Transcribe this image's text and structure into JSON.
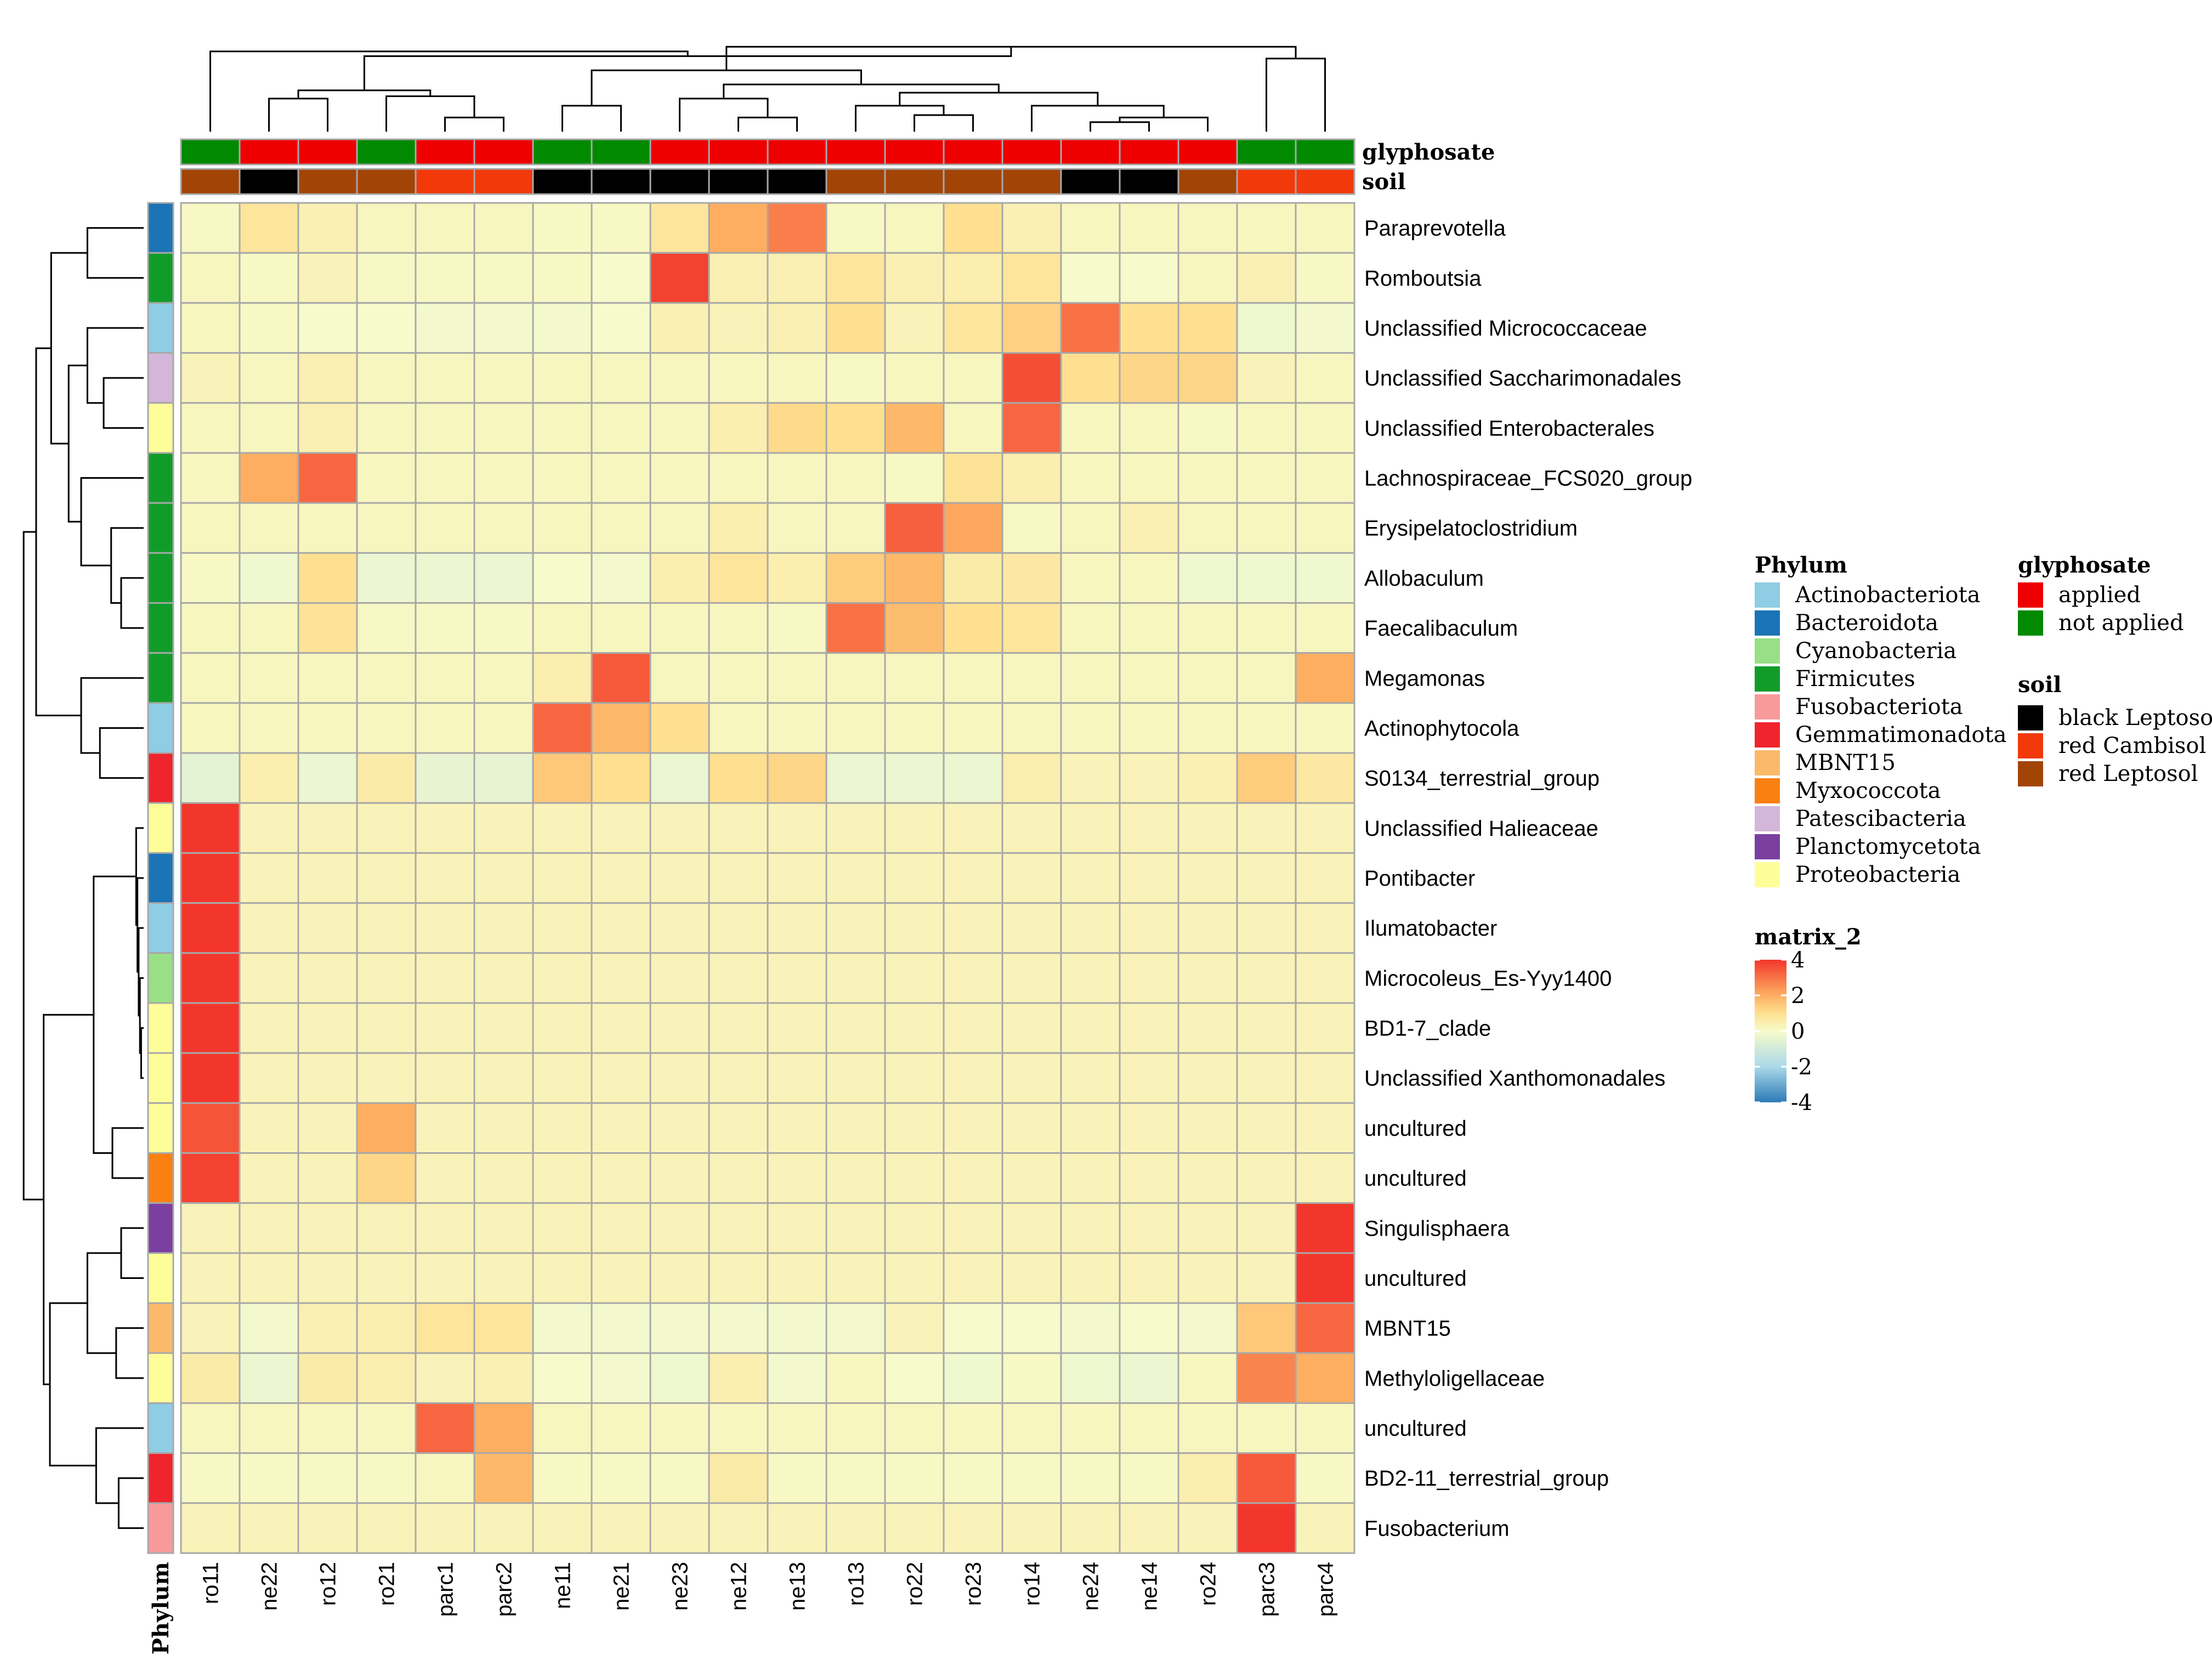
{
  "chart_data": {
    "type": "heatmap",
    "columns": [
      "ro11",
      "ne22",
      "ro12",
      "ro21",
      "parc1",
      "parc2",
      "ne11",
      "ne21",
      "ne23",
      "ne12",
      "ne13",
      "ro13",
      "ro22",
      "ro23",
      "ro14",
      "ne24",
      "ne14",
      "ro24",
      "parc3",
      "parc4"
    ],
    "rows": [
      {
        "label": "Paraprevotella",
        "phylum": "Bacteroidota",
        "values": [
          0.1,
          0.8,
          0.4,
          0.2,
          0.2,
          0.2,
          0.1,
          0.1,
          0.8,
          2.0,
          2.8,
          0.1,
          0.2,
          1.0,
          0.4,
          0.2,
          0.2,
          0.2,
          0.2,
          0.2
        ]
      },
      {
        "label": "Romboutsia",
        "phylum": "Firmicutes",
        "values": [
          0.2,
          0.1,
          0.3,
          0.1,
          0.1,
          0.1,
          0.1,
          0.0,
          3.8,
          0.4,
          0.4,
          0.8,
          0.4,
          0.5,
          0.8,
          0.0,
          0.0,
          0.2,
          0.4,
          0.1
        ]
      },
      {
        "label": "Unclassified  Micrococcaceae",
        "phylum": "Actinobacteriota",
        "values": [
          0.2,
          0.1,
          0.0,
          0.0,
          -0.1,
          -0.1,
          -0.1,
          0.0,
          0.4,
          0.3,
          0.4,
          1.0,
          0.3,
          0.8,
          1.3,
          3.0,
          1.0,
          1.0,
          -0.2,
          -0.1
        ]
      },
      {
        "label": "Unclassified  Saccharimonadales",
        "phylum": "Patescibacteria",
        "values": [
          0.3,
          0.2,
          0.4,
          0.2,
          0.2,
          0.2,
          0.2,
          0.2,
          0.2,
          0.2,
          0.2,
          0.1,
          0.2,
          0.2,
          3.6,
          1.0,
          1.2,
          1.2,
          0.3,
          0.2
        ]
      },
      {
        "label": "Unclassified  Enterobacterales",
        "phylum": "Proteobacteria",
        "values": [
          0.2,
          0.2,
          0.4,
          0.2,
          0.2,
          0.2,
          0.2,
          0.2,
          0.2,
          0.5,
          1.1,
          1.0,
          1.8,
          0.2,
          3.2,
          0.2,
          0.2,
          0.1,
          0.2,
          0.2
        ]
      },
      {
        "label": "Lachnospiraceae_FCS020_group",
        "phylum": "Firmicutes",
        "values": [
          0.2,
          2.0,
          3.2,
          0.2,
          0.2,
          0.2,
          0.2,
          0.2,
          0.2,
          0.2,
          0.2,
          0.2,
          0.1,
          0.9,
          0.5,
          0.2,
          0.2,
          0.2,
          0.2,
          0.2
        ]
      },
      {
        "label": "Erysipelatoclostridium",
        "phylum": "Firmicutes",
        "values": [
          0.2,
          0.2,
          0.2,
          0.2,
          0.2,
          0.2,
          0.2,
          0.2,
          0.2,
          0.5,
          0.2,
          0.2,
          3.3,
          2.1,
          0.1,
          0.2,
          0.4,
          0.2,
          0.2,
          0.2
        ]
      },
      {
        "label": "Allobaculum",
        "phylum": "Firmicutes",
        "values": [
          0.1,
          -0.2,
          1.0,
          -0.3,
          -0.3,
          -0.3,
          0.0,
          -0.1,
          0.5,
          0.8,
          0.5,
          1.4,
          1.8,
          0.6,
          0.7,
          0.2,
          0.2,
          -0.2,
          -0.2,
          -0.2
        ]
      },
      {
        "label": "Faecalibaculum",
        "phylum": "Firmicutes",
        "values": [
          0.2,
          0.2,
          0.9,
          0.1,
          0.1,
          0.1,
          0.2,
          0.2,
          0.2,
          0.2,
          0.1,
          3.0,
          1.7,
          1.0,
          0.8,
          0.2,
          0.2,
          0.2,
          0.2,
          0.2
        ]
      },
      {
        "label": "Megamonas",
        "phylum": "Firmicutes",
        "values": [
          0.2,
          0.2,
          0.2,
          0.2,
          0.2,
          0.2,
          0.5,
          3.4,
          0.2,
          0.2,
          0.2,
          0.2,
          0.2,
          0.2,
          0.2,
          0.2,
          0.2,
          0.2,
          0.2,
          2.0
        ]
      },
      {
        "label": "Actinophytocola",
        "phylum": "Actinobacteriota",
        "values": [
          0.2,
          0.2,
          0.2,
          0.2,
          0.2,
          0.2,
          3.2,
          1.8,
          1.0,
          0.2,
          0.2,
          0.2,
          0.2,
          0.2,
          0.2,
          0.2,
          0.2,
          0.2,
          0.2,
          0.2
        ]
      },
      {
        "label": "S0134_terrestrial_group",
        "phylum": "Gemmatimonadota",
        "values": [
          -0.5,
          0.5,
          -0.3,
          0.6,
          -0.4,
          -0.4,
          1.5,
          1.0,
          -0.3,
          1.0,
          1.2,
          -0.3,
          -0.3,
          -0.3,
          0.5,
          0.3,
          0.3,
          0.4,
          1.4,
          0.7
        ]
      },
      {
        "label": "Unclassified  Halieaceae",
        "phylum": "Proteobacteria",
        "values": [
          4.4,
          0.3,
          0.3,
          0.3,
          0.3,
          0.3,
          0.3,
          0.3,
          0.3,
          0.3,
          0.3,
          0.3,
          0.3,
          0.3,
          0.3,
          0.3,
          0.3,
          0.3,
          0.3,
          0.3
        ]
      },
      {
        "label": "Pontibacter",
        "phylum": "Bacteroidota",
        "values": [
          4.4,
          0.3,
          0.3,
          0.3,
          0.3,
          0.3,
          0.3,
          0.3,
          0.3,
          0.3,
          0.3,
          0.3,
          0.3,
          0.3,
          0.3,
          0.3,
          0.3,
          0.3,
          0.3,
          0.3
        ]
      },
      {
        "label": "Ilumatobacter",
        "phylum": "Actinobacteriota",
        "values": [
          4.4,
          0.3,
          0.3,
          0.3,
          0.3,
          0.3,
          0.3,
          0.3,
          0.3,
          0.3,
          0.3,
          0.3,
          0.3,
          0.3,
          0.3,
          0.3,
          0.3,
          0.3,
          0.3,
          0.3
        ]
      },
      {
        "label": "Microcoleus_Es-Yyy1400",
        "phylum": "Cyanobacteria",
        "values": [
          4.4,
          0.3,
          0.3,
          0.3,
          0.3,
          0.3,
          0.3,
          0.3,
          0.3,
          0.3,
          0.3,
          0.3,
          0.3,
          0.3,
          0.3,
          0.3,
          0.3,
          0.3,
          0.3,
          0.3
        ]
      },
      {
        "label": "BD1-7_clade",
        "phylum": "Proteobacteria",
        "values": [
          4.4,
          0.3,
          0.3,
          0.3,
          0.3,
          0.3,
          0.3,
          0.3,
          0.3,
          0.3,
          0.3,
          0.3,
          0.3,
          0.3,
          0.3,
          0.3,
          0.3,
          0.3,
          0.3,
          0.3
        ]
      },
      {
        "label": "Unclassified  Xanthomonadales",
        "phylum": "Proteobacteria",
        "values": [
          4.4,
          0.3,
          0.3,
          0.3,
          0.3,
          0.3,
          0.3,
          0.3,
          0.3,
          0.3,
          0.3,
          0.3,
          0.3,
          0.3,
          0.3,
          0.3,
          0.3,
          0.3,
          0.3,
          0.3
        ]
      },
      {
        "label": "uncultured",
        "phylum": "Proteobacteria",
        "values": [
          3.5,
          0.3,
          0.3,
          2.0,
          0.3,
          0.3,
          0.3,
          0.3,
          0.3,
          0.3,
          0.3,
          0.3,
          0.3,
          0.3,
          0.3,
          0.3,
          0.3,
          0.3,
          0.3,
          0.3
        ]
      },
      {
        "label": "uncultured",
        "phylum": "Myxococcota",
        "values": [
          3.8,
          0.3,
          0.3,
          1.2,
          0.3,
          0.3,
          0.3,
          0.3,
          0.3,
          0.3,
          0.3,
          0.3,
          0.3,
          0.3,
          0.3,
          0.3,
          0.3,
          0.3,
          0.3,
          0.3
        ]
      },
      {
        "label": "Singulisphaera",
        "phylum": "Planctomycetota",
        "values": [
          0.3,
          0.3,
          0.3,
          0.3,
          0.3,
          0.3,
          0.3,
          0.3,
          0.3,
          0.3,
          0.3,
          0.3,
          0.3,
          0.3,
          0.3,
          0.3,
          0.3,
          0.3,
          0.3,
          4.4
        ]
      },
      {
        "label": "uncultured",
        "phylum": "Proteobacteria",
        "values": [
          0.3,
          0.3,
          0.3,
          0.3,
          0.3,
          0.3,
          0.3,
          0.3,
          0.3,
          0.3,
          0.3,
          0.3,
          0.3,
          0.3,
          0.3,
          0.3,
          0.3,
          0.3,
          0.3,
          4.4
        ]
      },
      {
        "label": "MBNT15",
        "phylum": "MBNT15",
        "values": [
          0.3,
          -0.1,
          0.4,
          0.5,
          0.8,
          0.8,
          -0.1,
          -0.1,
          -0.1,
          -0.1,
          -0.1,
          -0.1,
          0.3,
          0.0,
          0.0,
          -0.1,
          0.0,
          -0.1,
          1.5,
          3.2
        ]
      },
      {
        "label": "Methyloligellaceae",
        "phylum": "Proteobacteria",
        "values": [
          0.6,
          -0.3,
          0.6,
          0.5,
          0.3,
          0.4,
          0.0,
          -0.1,
          -0.2,
          0.5,
          -0.1,
          0.2,
          0.0,
          -0.2,
          0.1,
          -0.2,
          -0.3,
          0.2,
          2.7,
          2.0
        ]
      },
      {
        "label": "uncultured",
        "phylum": "Actinobacteriota",
        "values": [
          0.2,
          0.2,
          0.2,
          0.2,
          3.2,
          2.0,
          0.2,
          0.2,
          0.2,
          0.2,
          0.2,
          0.2,
          0.2,
          0.2,
          0.2,
          0.2,
          0.2,
          0.2,
          0.2,
          0.2
        ]
      },
      {
        "label": "BD2-11_terrestrial_group",
        "phylum": "Gemmatimonadota",
        "values": [
          0.1,
          0.1,
          0.1,
          0.1,
          0.2,
          1.8,
          0.1,
          0.1,
          0.1,
          0.6,
          0.1,
          0.1,
          0.1,
          0.1,
          0.1,
          0.1,
          0.1,
          0.5,
          3.4,
          0.1
        ]
      },
      {
        "label": "Fusobacterium",
        "phylum": "Fusobacteriota",
        "values": [
          0.3,
          0.3,
          0.3,
          0.3,
          0.3,
          0.3,
          0.3,
          0.3,
          0.3,
          0.3,
          0.3,
          0.3,
          0.3,
          0.3,
          0.3,
          0.3,
          0.3,
          0.3,
          4.3,
          0.3
        ]
      }
    ],
    "column_annotations": {
      "glyphosate": [
        "not applied",
        "applied",
        "applied",
        "not applied",
        "applied",
        "applied",
        "not applied",
        "not applied",
        "applied",
        "applied",
        "applied",
        "applied",
        "applied",
        "applied",
        "applied",
        "applied",
        "applied",
        "applied",
        "not applied",
        "not applied"
      ],
      "soil": [
        "red Leptosol",
        "black Leptosol",
        "red Leptosol",
        "red Leptosol",
        "red Cambisol",
        "red Cambisol",
        "black Leptosol",
        "black Leptosol",
        "black Leptosol",
        "black Leptosol",
        "black Leptosol",
        "red Leptosol",
        "red Leptosol",
        "red Leptosol",
        "red Leptosol",
        "black Leptosol",
        "black Leptosol",
        "red Leptosol",
        "red Cambisol",
        "red Cambisol"
      ]
    },
    "annotation_labels": {
      "glyphosate": "glyphosate",
      "soil": "soil",
      "phylum": "Phylum"
    },
    "legends": {
      "phylum": {
        "title": "Phylum",
        "items": [
          {
            "label": "Actinobacteriota",
            "color": "#8ecde3"
          },
          {
            "label": "Bacteroidota",
            "color": "#1a74b6"
          },
          {
            "label": "Cyanobacteria",
            "color": "#98df86"
          },
          {
            "label": "Firmicutes",
            "color": "#119c2a"
          },
          {
            "label": "Fusobacteriota",
            "color": "#f89a9a"
          },
          {
            "label": "Gemmatimonadota",
            "color": "#f0242d"
          },
          {
            "label": "MBNT15",
            "color": "#fbba6a"
          },
          {
            "label": "Myxococcota",
            "color": "#fa8012"
          },
          {
            "label": "Patescibacteria",
            "color": "#d4b6da"
          },
          {
            "label": "Planctomycetota",
            "color": "#7a3f9f"
          },
          {
            "label": "Proteobacteria",
            "color": "#fefe99"
          }
        ]
      },
      "glyphosate": {
        "title": "glyphosate",
        "items": [
          {
            "label": "applied",
            "color": "#ee0000"
          },
          {
            "label": "not applied",
            "color": "#018a00"
          }
        ]
      },
      "soil": {
        "title": "soil",
        "items": [
          {
            "label": "black Leptosol",
            "color": "#000000"
          },
          {
            "label": "red Cambisol",
            "color": "#f2390a"
          },
          {
            "label": "red Leptosol",
            "color": "#a24406"
          }
        ]
      },
      "scale": {
        "title": "matrix_2",
        "ticks": [
          4,
          2,
          0,
          -2,
          -4
        ],
        "tick_labels": [
          "4",
          "2",
          "0",
          "-2",
          "-4"
        ],
        "range": [
          -4,
          4
        ]
      }
    },
    "color_scale": {
      "stops": [
        {
          "value": -4,
          "color": "#2c7bb6"
        },
        {
          "value": -2,
          "color": "#abd9e9"
        },
        {
          "value": 0,
          "color": "#f7fbcb"
        },
        {
          "value": 1,
          "color": "#fee090"
        },
        {
          "value": 2,
          "color": "#fdae61"
        },
        {
          "value": 4,
          "color": "#f3362b"
        }
      ]
    },
    "dendrograms": {
      "rows": "hierarchical clustering tree (left)",
      "columns": "hierarchical clustering tree (top)"
    }
  }
}
